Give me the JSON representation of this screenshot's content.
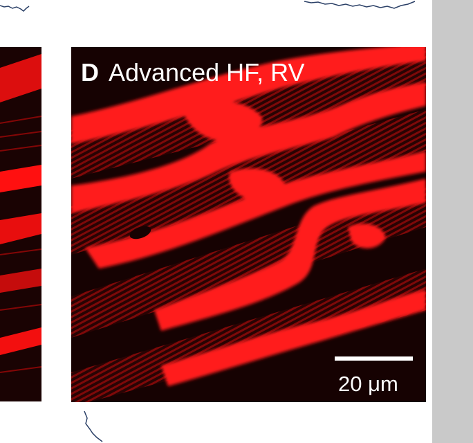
{
  "panel": {
    "letter": "D",
    "title": "Advanced HF, RV"
  },
  "scale_bar": {
    "label": "20 μm"
  },
  "colors": {
    "fluorescence": "#ff1010",
    "background": "#160202",
    "trace": "#2a3f66",
    "side_bar": "#c9c9c9"
  }
}
